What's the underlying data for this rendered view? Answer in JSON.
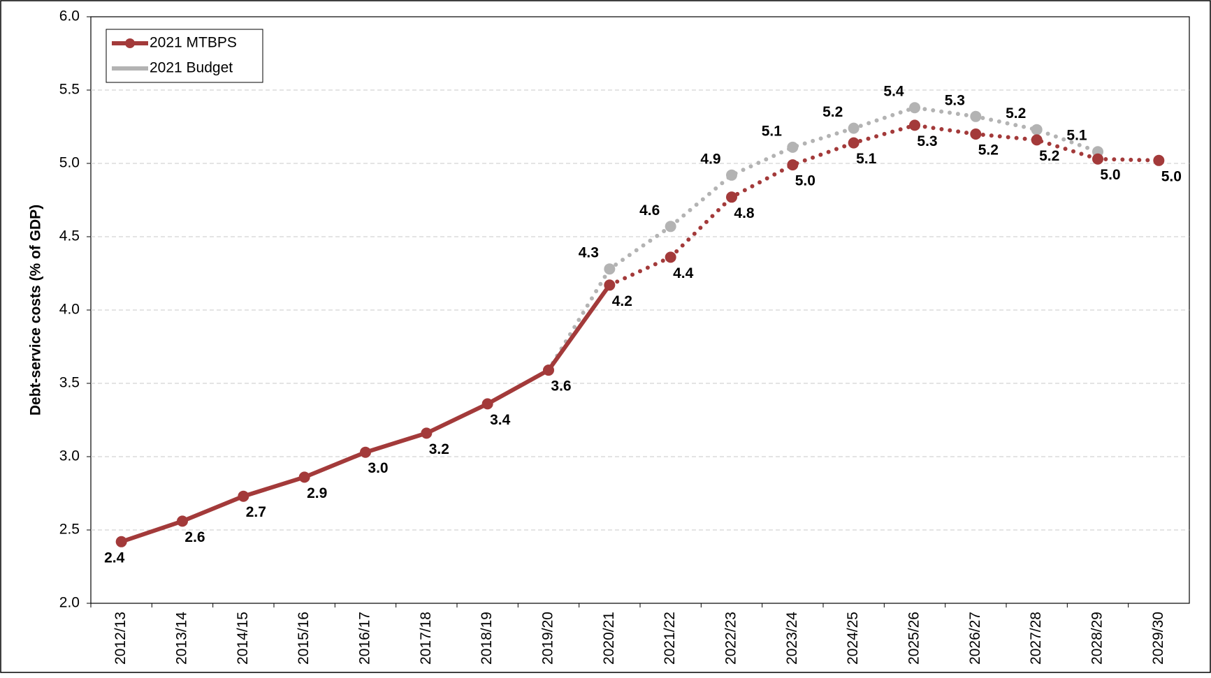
{
  "chart_data": {
    "type": "line",
    "y_label": "Debt-service costs (% of GDP)",
    "categories": [
      "2012/13",
      "2013/14",
      "2014/15",
      "2015/16",
      "2016/17",
      "2017/18",
      "2018/19",
      "2019/20",
      "2020/21",
      "2021/22",
      "2022/23",
      "2023/24",
      "2024/25",
      "2025/26",
      "2026/27",
      "2027/28",
      "2028/29",
      "2029/30"
    ],
    "series": [
      {
        "name": "2021 MTBPS",
        "color": "#a33a3a",
        "solid_until": "2020/21",
        "values": [
          2.42,
          2.56,
          2.73,
          2.86,
          3.03,
          3.16,
          3.36,
          3.59,
          4.17,
          4.36,
          4.77,
          4.99,
          5.14,
          5.26,
          5.2,
          5.16,
          5.03,
          5.02
        ],
        "value_labels": [
          "2.4",
          "2.6",
          "2.7",
          "2.9",
          "3.0",
          "3.2",
          "3.4",
          "3.6",
          "4.2",
          "4.4",
          "4.8",
          "5.0",
          "5.1",
          "5.3",
          "5.2",
          "5.2",
          "5.0",
          "5.0"
        ]
      },
      {
        "name": "2021 Budget",
        "color": "#b3b3b3",
        "solid_until": null,
        "values": [
          null,
          null,
          null,
          null,
          null,
          null,
          null,
          3.59,
          4.28,
          4.57,
          4.92,
          5.11,
          5.24,
          5.38,
          5.32,
          5.23,
          5.08,
          null
        ],
        "value_labels": [
          null,
          null,
          null,
          null,
          null,
          null,
          null,
          null,
          "4.3",
          "4.6",
          "4.9",
          "5.1",
          "5.2",
          "5.4",
          "5.3",
          "5.2",
          "5.1",
          null
        ]
      }
    ],
    "ylim": [
      2.0,
      6.0
    ],
    "yticks": [
      {
        "value": 2.0,
        "label": "2.0"
      },
      {
        "value": 2.5,
        "label": "2.5"
      },
      {
        "value": 3.0,
        "label": "3.0"
      },
      {
        "value": 3.5,
        "label": "3.5"
      },
      {
        "value": 4.0,
        "label": "4.0"
      },
      {
        "value": 4.5,
        "label": "4.5"
      },
      {
        "value": 5.0,
        "label": "5.0"
      },
      {
        "value": 5.5,
        "label": "5.5"
      },
      {
        "value": 6.0,
        "label": "6.0"
      }
    ],
    "grid": true,
    "legend": "top-left"
  }
}
